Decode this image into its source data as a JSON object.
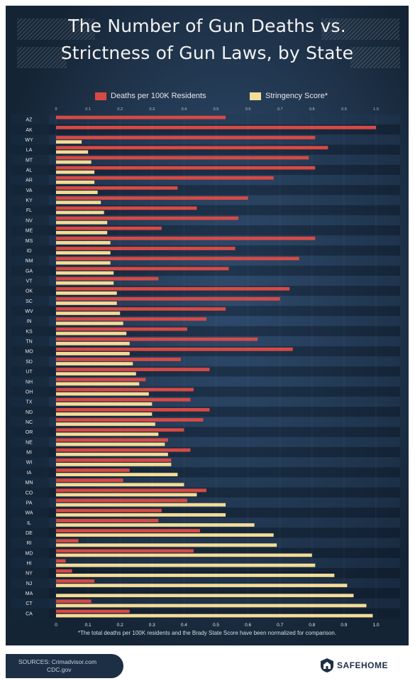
{
  "chart_data": {
    "type": "bar",
    "orientation": "horizontal",
    "title": "The Number of Gun Deaths vs. Strictness of Gun Laws, by State",
    "xlim": [
      0,
      1.0
    ],
    "x_ticks": [
      "0",
      "0.1",
      "0.2",
      "0.3",
      "0.4",
      "0.5",
      "0.6",
      "0.7",
      "0.8",
      "0.9",
      "1.0"
    ],
    "legend_position": "top",
    "categories": [
      "AZ",
      "AK",
      "WY",
      "LA",
      "MT",
      "AL",
      "AR",
      "VA",
      "KY",
      "FL",
      "NV",
      "ME",
      "MS",
      "ID",
      "NM",
      "GA",
      "VT",
      "OK",
      "SC",
      "WV",
      "IN",
      "KS",
      "TN",
      "MO",
      "SD",
      "UT",
      "NH",
      "OH",
      "TX",
      "ND",
      "NC",
      "OR",
      "NE",
      "MI",
      "WI",
      "IA",
      "MN",
      "CO",
      "PA",
      "WA",
      "IL",
      "DE",
      "RI",
      "MD",
      "HI",
      "NY",
      "NJ",
      "MA",
      "CT",
      "CA"
    ],
    "series": [
      {
        "name": "Deaths per 100K Residents",
        "color": "#d64a45",
        "values": [
          0.53,
          1.0,
          0.81,
          0.85,
          0.79,
          0.81,
          0.68,
          0.38,
          0.6,
          0.44,
          0.57,
          0.33,
          0.81,
          0.56,
          0.76,
          0.54,
          0.32,
          0.73,
          0.7,
          0.53,
          0.47,
          0.41,
          0.63,
          0.74,
          0.39,
          0.48,
          0.28,
          0.43,
          0.42,
          0.48,
          0.46,
          0.4,
          0.35,
          0.42,
          0.36,
          0.23,
          0.21,
          0.47,
          0.41,
          0.33,
          0.32,
          0.45,
          0.07,
          0.43,
          0.03,
          0.05,
          0.12,
          0.0,
          0.11,
          0.23
        ]
      },
      {
        "name": "Stringency Score*",
        "color": "#f3dc97",
        "values": [
          0.0,
          0.0,
          0.08,
          0.1,
          0.11,
          0.12,
          0.12,
          0.13,
          0.14,
          0.15,
          0.16,
          0.16,
          0.17,
          0.17,
          0.17,
          0.18,
          0.18,
          0.19,
          0.19,
          0.2,
          0.21,
          0.22,
          0.23,
          0.23,
          0.24,
          0.25,
          0.26,
          0.29,
          0.3,
          0.3,
          0.31,
          0.32,
          0.34,
          0.35,
          0.36,
          0.38,
          0.4,
          0.44,
          0.53,
          0.53,
          0.62,
          0.68,
          0.69,
          0.8,
          0.81,
          0.87,
          0.91,
          0.93,
          0.97,
          0.99
        ]
      }
    ]
  },
  "legend": {
    "deaths": "Deaths per 100K Residents",
    "stringency": "Stringency Score*"
  },
  "title": {
    "line1": "The Number of Gun Deaths vs.",
    "line2": "Strictness of Gun Laws, by State"
  },
  "footnote": "*The total deaths per 100K residents and the Brady State Score have been normalized for comparison.",
  "footer": {
    "sources_line1": "SOURCES: Crimadvisor.com",
    "sources_line2": "CDC.gov",
    "brand": "SAFEHOME",
    "brand_icon": "house-shield-icon"
  },
  "colors": {
    "background": "#1d2f45",
    "deaths": "#d64a45",
    "stringency": "#f3dc97"
  }
}
